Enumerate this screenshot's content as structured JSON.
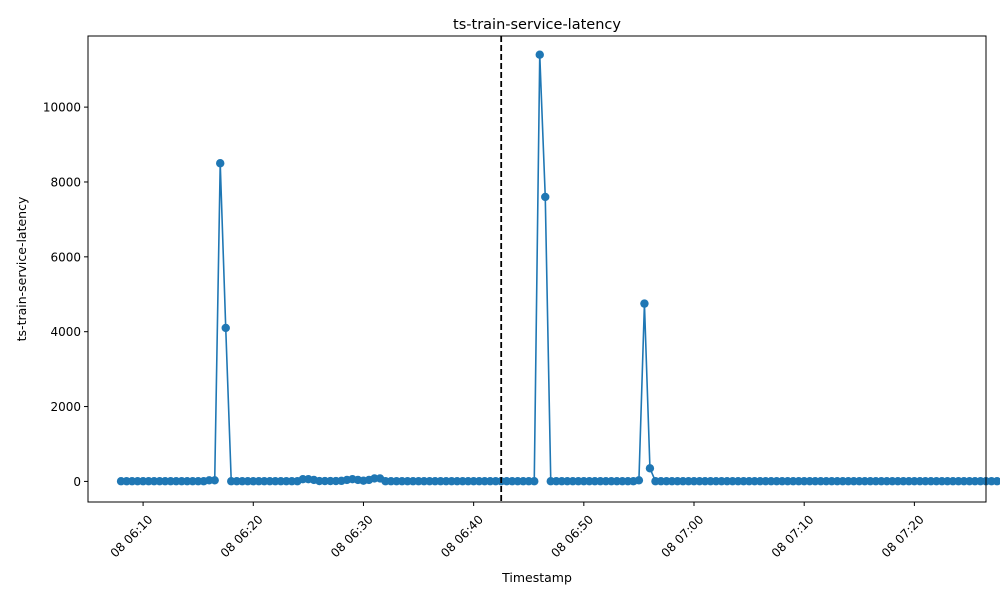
{
  "chart_data": {
    "type": "line",
    "title": "ts-train-service-latency",
    "xlabel": "Timestamp",
    "ylabel": "ts-train-service-latency",
    "xlim": [
      "06:05:00",
      "07:26:30"
    ],
    "ylim": [
      -550,
      11900
    ],
    "y_ticks": [
      0,
      2000,
      4000,
      6000,
      8000,
      10000
    ],
    "x_ticks": [
      {
        "t": "06:10",
        "label": "08 06:10"
      },
      {
        "t": "06:20",
        "label": "08 06:20"
      },
      {
        "t": "06:30",
        "label": "08 06:30"
      },
      {
        "t": "06:40",
        "label": "08 06:40"
      },
      {
        "t": "06:50",
        "label": "08 06:50"
      },
      {
        "t": "07:00",
        "label": "08 07:00"
      },
      {
        "t": "07:10",
        "label": "08 07:10"
      },
      {
        "t": "07:20",
        "label": "08 07:20"
      }
    ],
    "vline": {
      "t": "06:42:30",
      "style": "dashed",
      "color": "#000000"
    },
    "series": [
      {
        "color": "#1f77b4",
        "start": "06:08:00",
        "step_seconds": 30,
        "values": [
          5,
          5,
          5,
          5,
          5,
          5,
          5,
          5,
          5,
          5,
          5,
          5,
          5,
          5,
          5,
          5,
          30,
          30,
          8500,
          4100,
          5,
          5,
          5,
          5,
          5,
          5,
          5,
          5,
          5,
          5,
          5,
          5,
          5,
          60,
          60,
          40,
          10,
          10,
          10,
          10,
          15,
          40,
          60,
          40,
          20,
          40,
          80,
          80,
          5,
          5,
          5,
          5,
          5,
          5,
          5,
          5,
          5,
          5,
          5,
          5,
          5,
          5,
          5,
          5,
          5,
          5,
          5,
          5,
          5,
          5,
          5,
          5,
          5,
          5,
          5,
          5,
          11400,
          7600,
          5,
          5,
          5,
          5,
          5,
          5,
          5,
          5,
          5,
          5,
          5,
          5,
          5,
          5,
          5,
          5,
          30,
          4750,
          350,
          5,
          5,
          5,
          5,
          5,
          5,
          5,
          5,
          5,
          5,
          5,
          5,
          5,
          5,
          5,
          5,
          5,
          5,
          5,
          5,
          5,
          5,
          5,
          5,
          5,
          5,
          5,
          5,
          5,
          5,
          5,
          5,
          5,
          5,
          5,
          5,
          5,
          5,
          5,
          5,
          5,
          5,
          5,
          5,
          5,
          5,
          5,
          5,
          5,
          5,
          5,
          5,
          5,
          5,
          5,
          5,
          5,
          5,
          5,
          5,
          5,
          5,
          5,
          5,
          5,
          5,
          5,
          5,
          5,
          5,
          5,
          5,
          5,
          5,
          5,
          5,
          5,
          5,
          5
        ]
      }
    ]
  }
}
